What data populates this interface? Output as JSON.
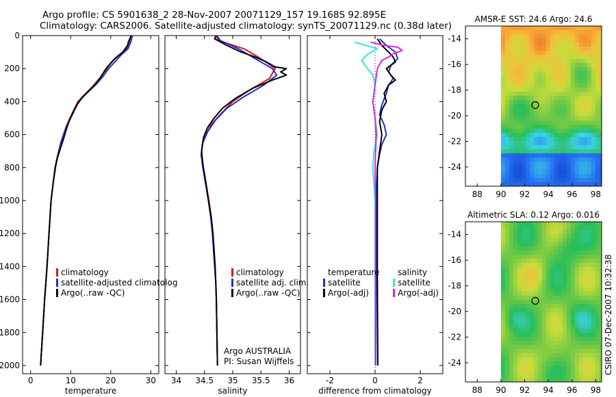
{
  "header": {
    "line1": "Argo profile: CS 5901638_2 28-Nov-2007 20071129_157 19.168S 92.895E",
    "line2": "Climatology: CARS2006. Satellite-adjusted climatology: synTS_20071129.nc (0.38d later)"
  },
  "side_note": "CSIRO 07-Dec-2007 10:32:38",
  "colors": {
    "climatology": "#e01010",
    "satellite": "#1a2ee0",
    "argo": "#000000",
    "salinity_satellite": "#2ee6e6",
    "salinity_argo": "#e020e0"
  },
  "chart_data": [
    {
      "id": "temperature",
      "type": "line",
      "xlabel": "temperature",
      "xlim": [
        -2,
        32
      ],
      "xticks": [
        0,
        10,
        20,
        30
      ],
      "ylim": [
        0,
        2050
      ],
      "yticks": [
        0,
        200,
        400,
        600,
        800,
        1000,
        1200,
        1400,
        1600,
        1800,
        2000
      ],
      "y_inverted": true,
      "legend": [
        "climatology",
        "satellite-adjusted climatolog",
        "Argo(..raw -QC)"
      ],
      "series": [
        {
          "name": "climatology",
          "color": "#e01010",
          "points": [
            [
              25.2,
              0
            ],
            [
              24.6,
              40
            ],
            [
              24.0,
              80
            ],
            [
              22.0,
              120
            ],
            [
              20.2,
              160
            ],
            [
              18.8,
              200
            ],
            [
              17.5,
              250
            ],
            [
              15.8,
              300
            ],
            [
              13.8,
              350
            ],
            [
              11.8,
              400
            ],
            [
              10.8,
              450
            ],
            [
              9.8,
              500
            ],
            [
              8.9,
              550
            ],
            [
              8.2,
              600
            ],
            [
              7.5,
              650
            ],
            [
              7.0,
              700
            ],
            [
              6.5,
              750
            ],
            [
              6.1,
              800
            ],
            [
              5.6,
              900
            ],
            [
              5.1,
              1000
            ],
            [
              4.6,
              1200
            ],
            [
              4.1,
              1400
            ],
            [
              3.5,
              1600
            ],
            [
              3.0,
              1800
            ],
            [
              2.5,
              2000
            ]
          ]
        },
        {
          "name": "satellite",
          "color": "#1a2ee0",
          "points": [
            [
              25.4,
              0
            ],
            [
              25.0,
              40
            ],
            [
              24.3,
              80
            ],
            [
              22.5,
              120
            ],
            [
              21.0,
              160
            ],
            [
              19.5,
              200
            ],
            [
              18.0,
              250
            ],
            [
              16.2,
              300
            ],
            [
              14.0,
              350
            ],
            [
              12.0,
              400
            ],
            [
              11.0,
              450
            ],
            [
              10.0,
              500
            ],
            [
              9.0,
              550
            ],
            [
              8.3,
              600
            ],
            [
              7.6,
              650
            ],
            [
              7.1,
              700
            ],
            [
              6.6,
              750
            ],
            [
              6.1,
              800
            ],
            [
              5.6,
              900
            ],
            [
              5.1,
              1000
            ],
            [
              4.6,
              1200
            ],
            [
              4.1,
              1400
            ],
            [
              3.5,
              1600
            ],
            [
              3.0,
              1800
            ],
            [
              2.5,
              2000
            ]
          ]
        },
        {
          "name": "argo",
          "color": "#000000",
          "points": [
            [
              25.1,
              0
            ],
            [
              24.4,
              40
            ],
            [
              24.2,
              60
            ],
            [
              23.0,
              100
            ],
            [
              21.0,
              140
            ],
            [
              19.6,
              180
            ],
            [
              18.4,
              220
            ],
            [
              17.0,
              270
            ],
            [
              15.2,
              320
            ],
            [
              13.0,
              370
            ],
            [
              11.6,
              420
            ],
            [
              10.5,
              470
            ],
            [
              9.6,
              520
            ],
            [
              8.9,
              570
            ],
            [
              8.3,
              620
            ],
            [
              7.5,
              680
            ],
            [
              6.7,
              740
            ],
            [
              6.2,
              800
            ],
            [
              5.6,
              900
            ],
            [
              5.1,
              1000
            ],
            [
              4.6,
              1200
            ],
            [
              4.1,
              1400
            ],
            [
              3.5,
              1600
            ],
            [
              3.0,
              1800
            ],
            [
              2.5,
              2000
            ]
          ]
        }
      ]
    },
    {
      "id": "salinity",
      "type": "line",
      "xlabel": "salinity",
      "xlim": [
        33.8,
        36.2
      ],
      "xticks": [
        34,
        34.5,
        35,
        35.5,
        36
      ],
      "ylim": [
        0,
        2050
      ],
      "y_inverted": true,
      "legend": [
        "climatology",
        "satellite adj. clim.",
        "Argo(..raw -QC)"
      ],
      "annotations": [
        "Argo AUSTRALIA",
        "PI: Susan Wijffels"
      ],
      "series": [
        {
          "name": "climatology",
          "color": "#e01010",
          "points": [
            [
              34.7,
              0
            ],
            [
              34.75,
              30
            ],
            [
              35.2,
              80
            ],
            [
              35.5,
              140
            ],
            [
              35.75,
              200
            ],
            [
              35.65,
              260
            ],
            [
              35.3,
              330
            ],
            [
              35.0,
              400
            ],
            [
              34.8,
              470
            ],
            [
              34.62,
              540
            ],
            [
              34.52,
              600
            ],
            [
              34.46,
              660
            ],
            [
              34.45,
              720
            ],
            [
              34.48,
              800
            ],
            [
              34.53,
              900
            ],
            [
              34.58,
              1000
            ],
            [
              34.62,
              1100
            ],
            [
              34.65,
              1200
            ],
            [
              34.67,
              1300
            ],
            [
              34.68,
              1400
            ],
            [
              34.7,
              1500
            ],
            [
              34.71,
              1600
            ],
            [
              34.72,
              1800
            ],
            [
              34.73,
              2000
            ]
          ]
        },
        {
          "name": "satellite",
          "color": "#1a2ee0",
          "points": [
            [
              34.72,
              0
            ],
            [
              34.78,
              30
            ],
            [
              35.1,
              80
            ],
            [
              35.4,
              140
            ],
            [
              35.7,
              200
            ],
            [
              35.78,
              240
            ],
            [
              35.55,
              300
            ],
            [
              35.2,
              370
            ],
            [
              34.9,
              440
            ],
            [
              34.7,
              510
            ],
            [
              34.56,
              580
            ],
            [
              34.47,
              650
            ],
            [
              34.44,
              720
            ],
            [
              34.47,
              800
            ],
            [
              34.52,
              900
            ],
            [
              34.57,
              1000
            ],
            [
              34.61,
              1100
            ],
            [
              34.64,
              1200
            ],
            [
              34.66,
              1300
            ],
            [
              34.68,
              1400
            ],
            [
              34.7,
              1500
            ],
            [
              34.71,
              1600
            ],
            [
              34.72,
              1800
            ],
            [
              34.73,
              2000
            ]
          ]
        },
        {
          "name": "argo",
          "color": "#000000",
          "points": [
            [
              34.7,
              0
            ],
            [
              34.68,
              20
            ],
            [
              34.9,
              60
            ],
            [
              35.15,
              100
            ],
            [
              35.4,
              130
            ],
            [
              35.6,
              160
            ],
            [
              35.75,
              190
            ],
            [
              35.95,
              200
            ],
            [
              35.85,
              220
            ],
            [
              35.95,
              240
            ],
            [
              35.7,
              270
            ],
            [
              35.35,
              320
            ],
            [
              35.05,
              380
            ],
            [
              34.82,
              440
            ],
            [
              34.67,
              500
            ],
            [
              34.55,
              560
            ],
            [
              34.48,
              620
            ],
            [
              34.45,
              700
            ],
            [
              34.47,
              780
            ],
            [
              34.52,
              880
            ],
            [
              34.57,
              1000
            ],
            [
              34.62,
              1100
            ],
            [
              34.65,
              1200
            ],
            [
              34.67,
              1300
            ],
            [
              34.69,
              1400
            ],
            [
              34.7,
              1500
            ],
            [
              34.71,
              1600
            ],
            [
              34.72,
              1800
            ],
            [
              34.73,
              2000
            ]
          ]
        }
      ]
    },
    {
      "id": "difference",
      "type": "line",
      "xlabel": "difference from climatology",
      "xlim": [
        -3,
        3
      ],
      "xticks": [
        -2,
        0,
        2
      ],
      "ylim": [
        0,
        2050
      ],
      "y_inverted": true,
      "legend_left": [
        "temperature",
        "satellite",
        "Argo(-adj)"
      ],
      "legend_right": [
        "salinity",
        "satellite",
        "Argo(-adj)"
      ],
      "series": [
        {
          "name": "temperature satellite",
          "color": "#1a2ee0",
          "points": [
            [
              0.2,
              20
            ],
            [
              0.5,
              60
            ],
            [
              0.9,
              100
            ],
            [
              1.0,
              140
            ],
            [
              0.7,
              180
            ],
            [
              0.6,
              220
            ],
            [
              0.8,
              260
            ],
            [
              0.6,
              300
            ],
            [
              0.5,
              350
            ],
            [
              0.3,
              420
            ],
            [
              0.2,
              480
            ],
            [
              0.4,
              540
            ],
            [
              0.5,
              600
            ],
            [
              0.3,
              660
            ],
            [
              0.2,
              720
            ],
            [
              0.1,
              800
            ],
            [
              0.05,
              1000
            ],
            [
              0.05,
              1400
            ],
            [
              0.03,
              2000
            ]
          ]
        },
        {
          "name": "temperature argo",
          "color": "#000000",
          "points": [
            [
              0.1,
              20
            ],
            [
              0.3,
              60
            ],
            [
              0.6,
              100
            ],
            [
              0.8,
              130
            ],
            [
              0.9,
              160
            ],
            [
              0.5,
              200
            ],
            [
              0.7,
              240
            ],
            [
              0.9,
              270
            ],
            [
              0.6,
              300
            ],
            [
              0.4,
              350
            ],
            [
              0.5,
              400
            ],
            [
              0.3,
              450
            ],
            [
              0.2,
              520
            ],
            [
              0.3,
              600
            ],
            [
              0.2,
              700
            ],
            [
              0.1,
              800
            ],
            [
              0.1,
              1000
            ],
            [
              0.1,
              1400
            ],
            [
              0.12,
              2000
            ]
          ]
        },
        {
          "name": "salinity satellite",
          "color": "#2ee6e6",
          "points": [
            [
              -0.9,
              40
            ],
            [
              -0.4,
              60
            ],
            [
              0.1,
              80
            ],
            [
              -0.3,
              110
            ],
            [
              -0.6,
              150
            ],
            [
              -0.4,
              190
            ],
            [
              -0.1,
              240
            ],
            [
              0.0,
              300
            ],
            [
              -0.1,
              400
            ],
            [
              0.0,
              500
            ],
            [
              0.1,
              600
            ],
            [
              -0.05,
              700
            ],
            [
              -0.1,
              800
            ],
            [
              0.0,
              1000
            ],
            [
              0.0,
              1400
            ],
            [
              0.0,
              2000
            ]
          ]
        },
        {
          "name": "salinity argo",
          "color": "#e020e0",
          "points": [
            [
              -0.2,
              40
            ],
            [
              0.4,
              60
            ],
            [
              1.0,
              70
            ],
            [
              1.2,
              90
            ],
            [
              0.8,
              110
            ],
            [
              0.6,
              130
            ],
            [
              0.3,
              150
            ],
            [
              0.1,
              200
            ],
            [
              0.0,
              300
            ],
            [
              -0.1,
              400
            ],
            [
              0.0,
              500
            ],
            [
              0.05,
              600
            ],
            [
              0.0,
              800
            ],
            [
              0.02,
              1000
            ],
            [
              0.02,
              1400
            ],
            [
              0.02,
              2000
            ]
          ]
        }
      ]
    },
    {
      "id": "sst-map",
      "type": "heatmap",
      "title": "AMSR-E SST: 24.6 Argo: 24.6",
      "xlim": [
        87,
        98.5
      ],
      "xticks": [
        88,
        90,
        92,
        94,
        96,
        98
      ],
      "ylim": [
        -25.5,
        -13
      ],
      "yticks": [
        -14,
        -16,
        -18,
        -20,
        -22,
        -24
      ],
      "data_x_start": 90,
      "marker": {
        "lon": 92.895,
        "lat": -19.168
      }
    },
    {
      "id": "sla-map",
      "type": "heatmap",
      "title": "Altimetric SLA: 0.12 Argo: 0.016",
      "xlim": [
        87,
        98.5
      ],
      "xticks": [
        88,
        90,
        92,
        94,
        96,
        98
      ],
      "ylim": [
        -25.5,
        -13
      ],
      "yticks": [
        -14,
        -16,
        -18,
        -20,
        -22,
        -24
      ],
      "data_x_start": 90,
      "marker": {
        "lon": 92.895,
        "lat": -19.168
      }
    }
  ]
}
